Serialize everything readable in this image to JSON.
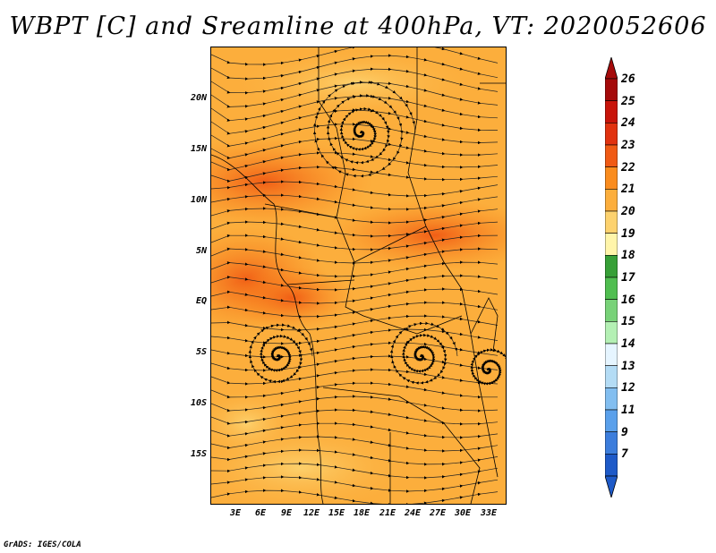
{
  "title": "WBPT [C] and Sreamline at 400hPa, VT: 2020052606",
  "credit": "GrADS: IGES/COLA",
  "map": {
    "description": "Wet-bulb potential temperature shading with streamlines over Central Africa",
    "lat_labels": [
      "20N",
      "15N",
      "10N",
      "5N",
      "EQ",
      "5S",
      "10S",
      "15S"
    ],
    "lat_values": [
      20,
      15,
      10,
      5,
      0,
      -5,
      -10,
      -15
    ],
    "lon_labels": [
      "3E",
      "6E",
      "9E",
      "12E",
      "15E",
      "18E",
      "21E",
      "24E",
      "27E",
      "30E",
      "33E"
    ],
    "lon_values": [
      3,
      6,
      9,
      12,
      15,
      18,
      21,
      24,
      27,
      30,
      33
    ],
    "lon_range": [
      0,
      35
    ],
    "lat_range": [
      -19,
      24.5
    ]
  },
  "colorbar": {
    "labels": [
      "26",
      "25",
      "24",
      "23",
      "22",
      "21",
      "20",
      "19",
      "18",
      "17",
      "16",
      "15",
      "14",
      "13",
      "12",
      "11",
      "9",
      "7"
    ],
    "colors": [
      "#a50a0a",
      "#c8140a",
      "#e1320f",
      "#f05a14",
      "#fa8c1e",
      "#fcae3c",
      "#fdd26e",
      "#fff5aa",
      "#37a037",
      "#50be50",
      "#78d278",
      "#b4f0b4",
      "#e6f5ff",
      "#b4dcf5",
      "#82bef0",
      "#5aa0eb",
      "#3c7ddc",
      "#1e5ac8"
    ]
  }
}
